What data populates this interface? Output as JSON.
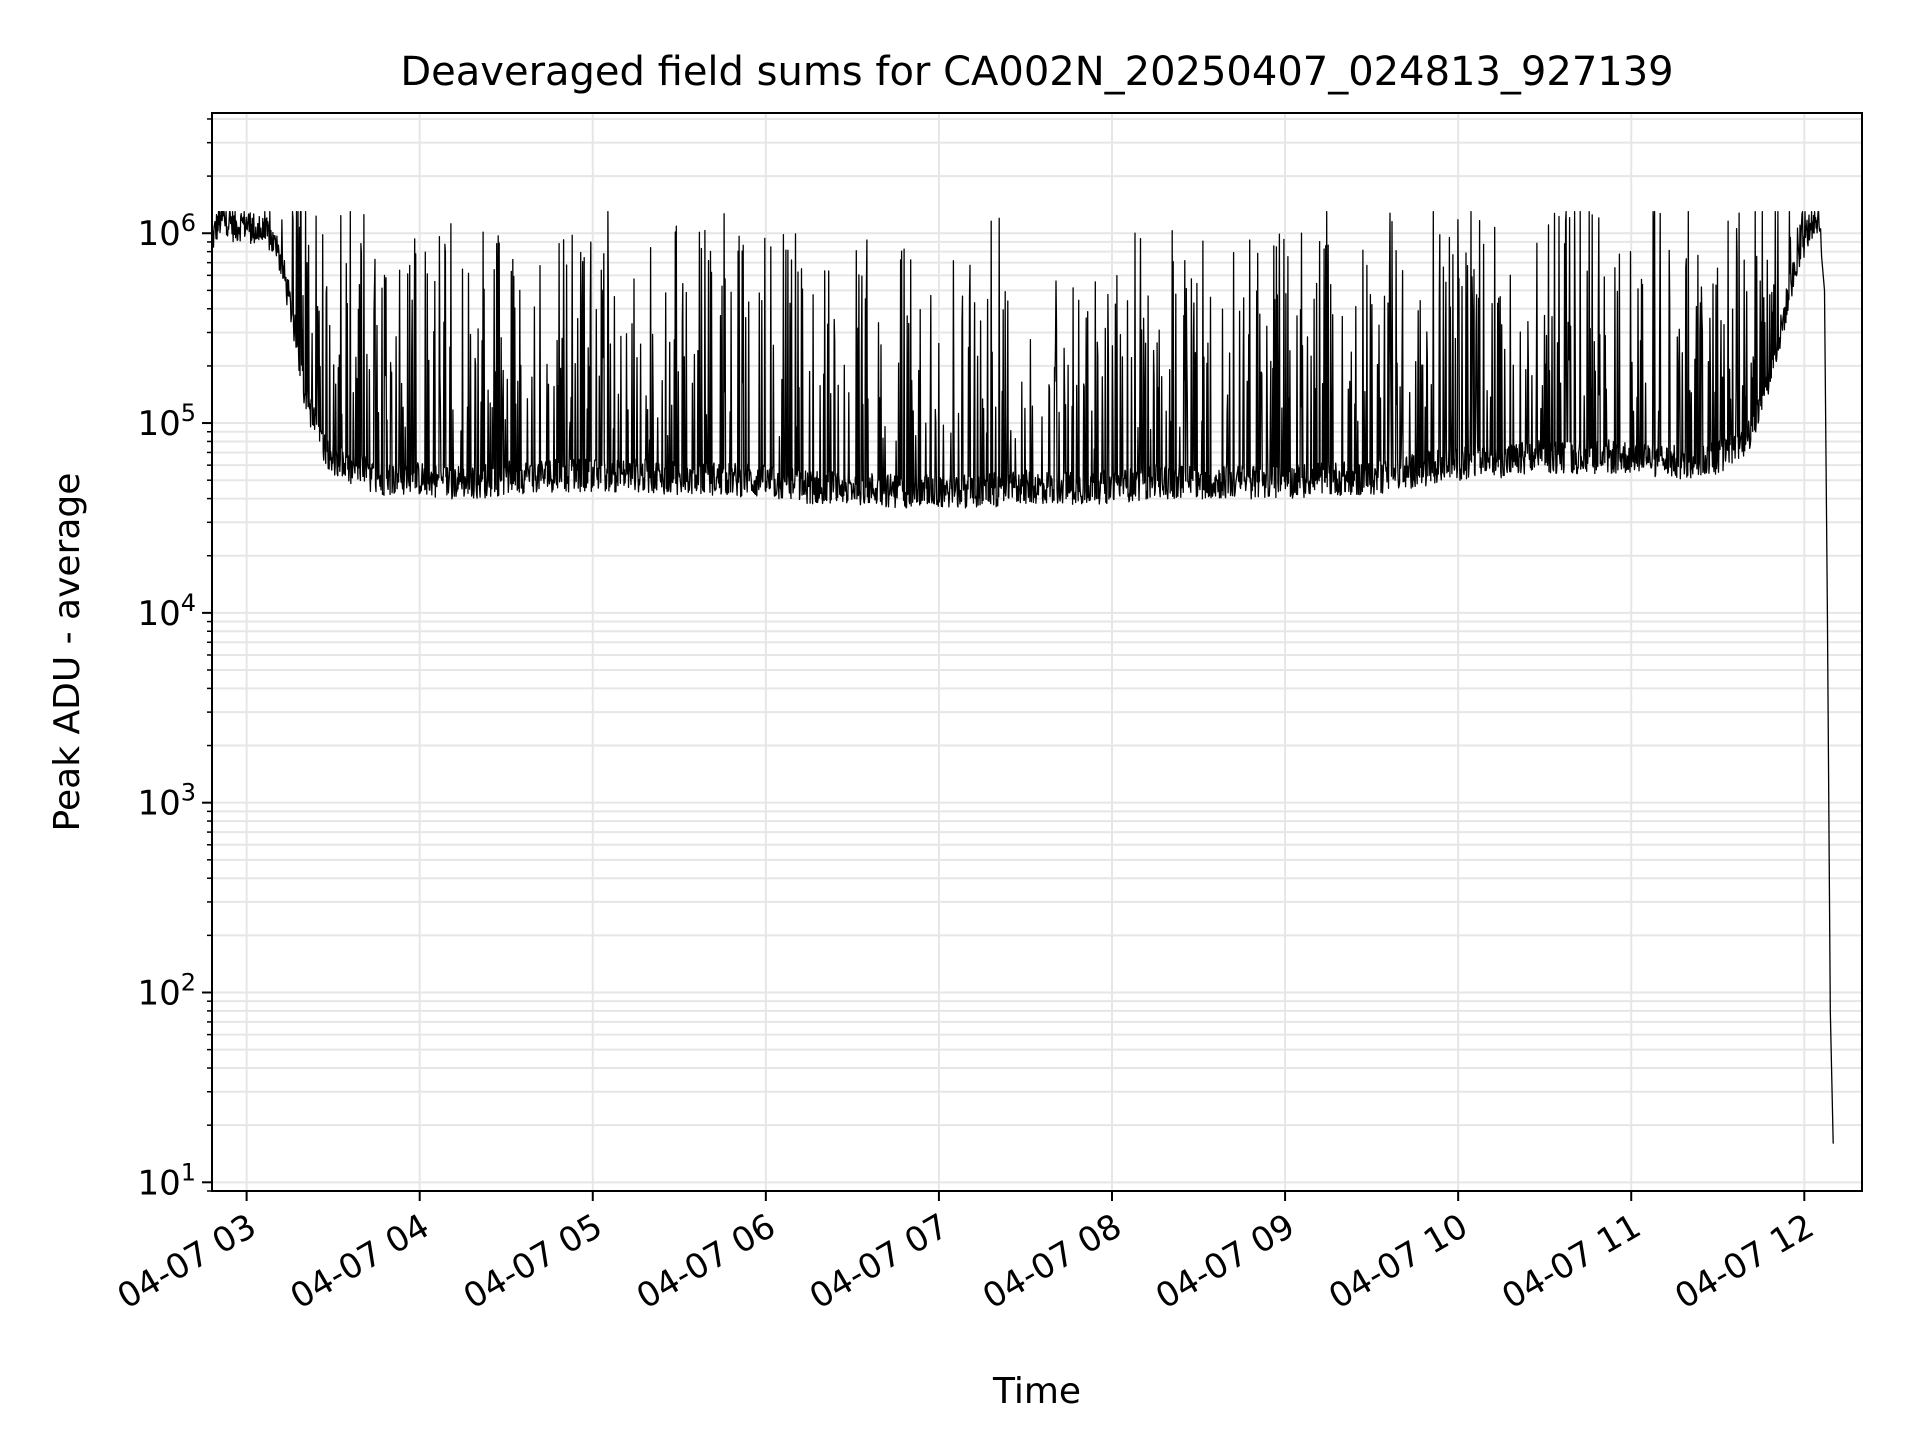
{
  "chart_data": {
    "type": "line",
    "title": "Deaveraged field sums for CA002N_20250407_024813_927139",
    "xlabel": "Time",
    "ylabel": "Peak ADU - average",
    "yscale": "log",
    "grid": true,
    "grid_minor": true,
    "xlim": [
      "2025-04-07T02:48",
      "2025-04-07T12:20"
    ],
    "ylim": [
      9,
      4300000
    ],
    "x_ticks": [
      {
        "value": "2025-04-07T03:00",
        "label": "04-07 03"
      },
      {
        "value": "2025-04-07T04:00",
        "label": "04-07 04"
      },
      {
        "value": "2025-04-07T05:00",
        "label": "04-07 05"
      },
      {
        "value": "2025-04-07T06:00",
        "label": "04-07 06"
      },
      {
        "value": "2025-04-07T07:00",
        "label": "04-07 07"
      },
      {
        "value": "2025-04-07T08:00",
        "label": "04-07 08"
      },
      {
        "value": "2025-04-07T09:00",
        "label": "04-07 09"
      },
      {
        "value": "2025-04-07T10:00",
        "label": "04-07 10"
      },
      {
        "value": "2025-04-07T11:00",
        "label": "04-07 11"
      },
      {
        "value": "2025-04-07T12:00",
        "label": "04-07 12"
      }
    ],
    "y_ticks": [
      {
        "value": 10,
        "base": "10",
        "exp": "1"
      },
      {
        "value": 100,
        "base": "10",
        "exp": "2"
      },
      {
        "value": 1000,
        "base": "10",
        "exp": "3"
      },
      {
        "value": 10000,
        "base": "10",
        "exp": "4"
      },
      {
        "value": 100000,
        "base": "10",
        "exp": "5"
      },
      {
        "value": 1000000,
        "base": "10",
        "exp": "6"
      }
    ],
    "line_color": "#000000",
    "grid_color": "#e6e6e6",
    "series": [
      {
        "x": [
          "2025-04-07T02:48",
          "2025-04-07T02:50",
          "2025-04-07T02:52",
          "2025-04-07T02:54",
          "2025-04-07T02:56",
          "2025-04-07T02:58",
          "2025-04-07T03:00",
          "2025-04-07T03:04",
          "2025-04-07T03:08",
          "2025-04-07T03:12",
          "2025-04-07T03:16",
          "2025-04-07T03:20",
          "2025-04-07T03:24",
          "2025-04-07T03:28",
          "2025-04-07T03:32",
          "2025-04-07T03:36",
          "2025-04-07T03:40",
          "2025-04-07T03:45",
          "2025-04-07T03:50",
          "2025-04-07T03:55",
          "2025-04-07T04:00",
          "2025-04-07T04:10",
          "2025-04-07T04:20",
          "2025-04-07T04:30",
          "2025-04-07T04:40",
          "2025-04-07T04:50",
          "2025-04-07T05:00",
          "2025-04-07T05:15",
          "2025-04-07T05:30",
          "2025-04-07T05:45",
          "2025-04-07T06:00",
          "2025-04-07T06:15",
          "2025-04-07T06:30",
          "2025-04-07T06:45",
          "2025-04-07T07:00",
          "2025-04-07T07:15",
          "2025-04-07T07:30",
          "2025-04-07T07:45",
          "2025-04-07T08:00",
          "2025-04-07T08:15",
          "2025-04-07T08:30",
          "2025-04-07T08:45",
          "2025-04-07T09:00",
          "2025-04-07T09:15",
          "2025-04-07T09:30",
          "2025-04-07T09:45",
          "2025-04-07T10:00",
          "2025-04-07T10:15",
          "2025-04-07T10:30",
          "2025-04-07T10:45",
          "2025-04-07T11:00",
          "2025-04-07T11:10",
          "2025-04-07T11:20",
          "2025-04-07T11:30",
          "2025-04-07T11:40",
          "2025-04-07T11:45",
          "2025-04-07T11:50",
          "2025-04-07T11:55",
          "2025-04-07T12:00",
          "2025-04-07T12:03",
          "2025-04-07T12:05",
          "2025-04-07T12:06",
          "2025-04-07T12:07",
          "2025-04-07T12:08",
          "2025-04-07T12:09",
          "2025-04-07T12:10"
        ],
        "y": [
          900000,
          1100000,
          1200000,
          1150000,
          1050000,
          1100000,
          1100000,
          1000000,
          950000,
          700000,
          350000,
          150000,
          90000,
          70000,
          60000,
          55000,
          55000,
          50000,
          50000,
          50000,
          50000,
          48000,
          48000,
          50000,
          52000,
          52000,
          52000,
          52000,
          50000,
          50000,
          48000,
          45000,
          45000,
          43000,
          43000,
          43000,
          45000,
          45000,
          45000,
          48000,
          48000,
          48000,
          48000,
          50000,
          50000,
          55000,
          60000,
          62000,
          65000,
          65000,
          65000,
          62000,
          60000,
          65000,
          80000,
          120000,
          220000,
          500000,
          900000,
          1150000,
          1200000,
          900000,
          500000,
          10000,
          80,
          16
        ]
      }
    ],
    "spikes": {
      "description_level": "shown",
      "min": 35000,
      "max": 1300000
    }
  }
}
